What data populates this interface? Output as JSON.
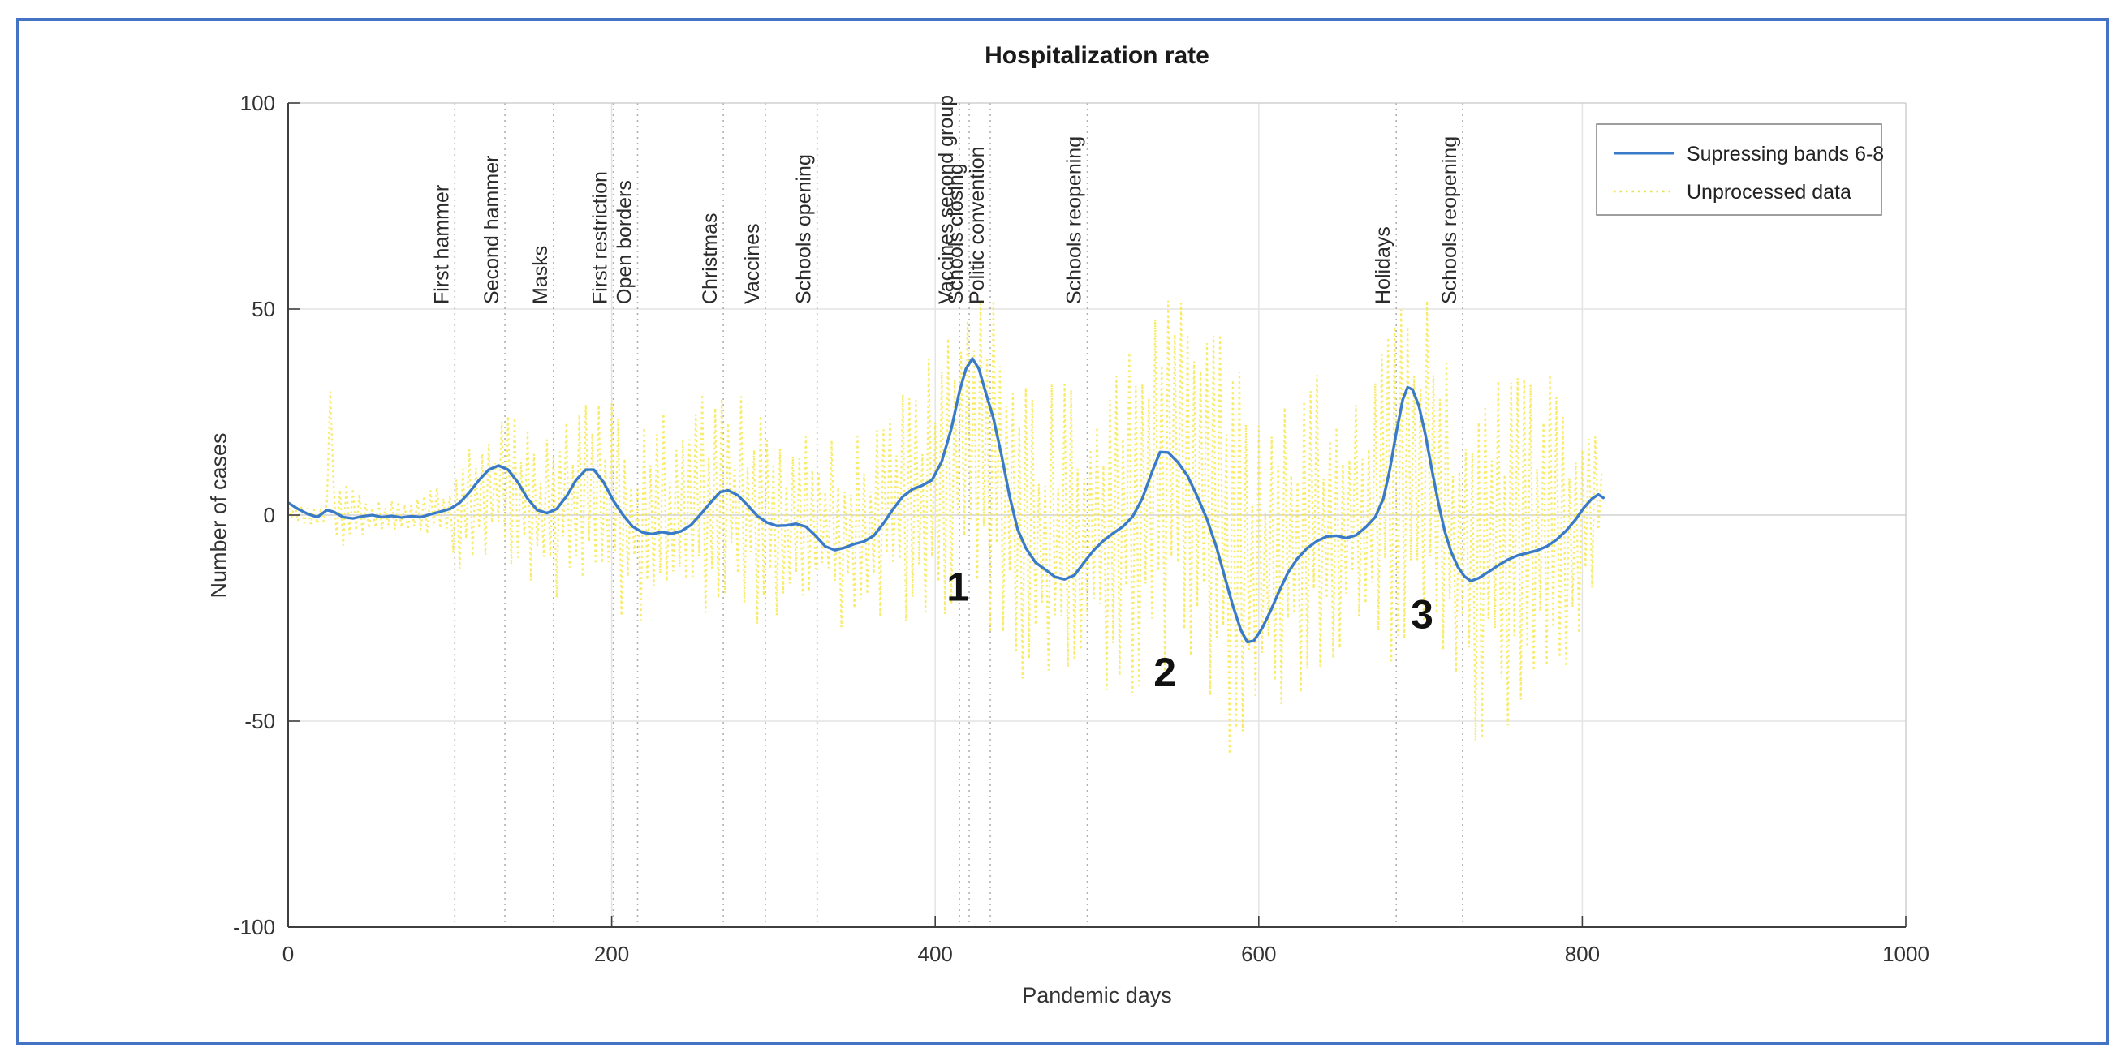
{
  "figure": {
    "border_color": "#4472C4",
    "background": "#ffffff"
  },
  "chart_data": {
    "type": "line",
    "title": "Hospitalization rate",
    "xlabel": "Pandemic days",
    "ylabel": "Number of cases",
    "xlim": [
      0,
      1000
    ],
    "ylim": [
      -100,
      100
    ],
    "xticks": [
      0,
      200,
      400,
      600,
      800,
      1000
    ],
    "yticks": [
      -100,
      -50,
      0,
      50,
      100
    ],
    "grid": true,
    "colors": {
      "smoothed": "#3a7bc8",
      "raw": "#f6e84f",
      "raw_legend": "#ece04a",
      "grid": "#e4e4e4",
      "zero_grid": "#d2d2d2",
      "event_line": "#b0b0b0",
      "axis": "#3f3f3f",
      "box": "#c8c8c8",
      "tick_text": "#333333",
      "event_text": "#2b2b2b",
      "annotation": "#111111",
      "legend_border": "#7f7f7f"
    },
    "legend": {
      "position": "top-right",
      "entries": [
        {
          "label": "Supressing bands 6-8",
          "style": "solid",
          "color": "#3a7bc8"
        },
        {
          "label": "Unprocessed data",
          "style": "dotted",
          "color": "#ece04a"
        }
      ]
    },
    "events": [
      {
        "label": "First hammer",
        "day": 103
      },
      {
        "label": "Second hammer",
        "day": 134
      },
      {
        "label": "Masks",
        "day": 164
      },
      {
        "label": "First restriction",
        "day": 201
      },
      {
        "label": "Open borders",
        "day": 216
      },
      {
        "label": "Christmas",
        "day": 269
      },
      {
        "label": "Vaccines",
        "day": 295
      },
      {
        "label": "Schools opening",
        "day": 327
      },
      {
        "label": "Vaccines second group",
        "day": 415
      },
      {
        "label": "Schools closing",
        "day": 421
      },
      {
        "label": "Politic convention",
        "day": 434
      },
      {
        "label": "Schools reopening",
        "day": 494
      },
      {
        "label": "Holidays",
        "day": 685
      },
      {
        "label": "Schools reopening",
        "day": 726
      }
    ],
    "annotations": [
      {
        "text": "1",
        "day": 414,
        "value": -20.8
      },
      {
        "text": "2",
        "day": 542,
        "value": -41.5
      },
      {
        "text": "3",
        "day": 701,
        "value": -27.5
      }
    ],
    "series": [
      {
        "name": "Supressing bands 6-8",
        "kind": "smoothed",
        "points": [
          [
            0,
            3
          ],
          [
            6,
            1.5
          ],
          [
            12,
            0.3
          ],
          [
            18,
            -0.5
          ],
          [
            24,
            1.2
          ],
          [
            28,
            0.8
          ],
          [
            34,
            -0.5
          ],
          [
            40,
            -0.8
          ],
          [
            46,
            -0.3
          ],
          [
            52,
            0
          ],
          [
            58,
            -0.5
          ],
          [
            64,
            -0.2
          ],
          [
            70,
            -0.6
          ],
          [
            76,
            -0.3
          ],
          [
            82,
            -0.5
          ],
          [
            88,
            0.2
          ],
          [
            94,
            0.8
          ],
          [
            100,
            1.5
          ],
          [
            106,
            3
          ],
          [
            112,
            5.5
          ],
          [
            118,
            8.5
          ],
          [
            124,
            11
          ],
          [
            130,
            12
          ],
          [
            136,
            11
          ],
          [
            142,
            8
          ],
          [
            148,
            4
          ],
          [
            154,
            1.2
          ],
          [
            160,
            0.5
          ],
          [
            166,
            1.5
          ],
          [
            172,
            4.5
          ],
          [
            178,
            8.5
          ],
          [
            184,
            11
          ],
          [
            189,
            11
          ],
          [
            195,
            8
          ],
          [
            201,
            3.5
          ],
          [
            207,
            0
          ],
          [
            213,
            -2.8
          ],
          [
            219,
            -4.2
          ],
          [
            225,
            -4.6
          ],
          [
            231,
            -4.1
          ],
          [
            237,
            -4.5
          ],
          [
            243,
            -3.9
          ],
          [
            249,
            -2.4
          ],
          [
            255,
            0.2
          ],
          [
            261,
            3
          ],
          [
            267,
            5.6
          ],
          [
            272,
            6
          ],
          [
            278,
            4.8
          ],
          [
            284,
            2.4
          ],
          [
            290,
            -0.2
          ],
          [
            296,
            -1.8
          ],
          [
            302,
            -2.6
          ],
          [
            308,
            -2.5
          ],
          [
            314,
            -2.1
          ],
          [
            320,
            -2.8
          ],
          [
            326,
            -5
          ],
          [
            332,
            -7.6
          ],
          [
            338,
            -8.5
          ],
          [
            344,
            -7.9
          ],
          [
            350,
            -7
          ],
          [
            356,
            -6.4
          ],
          [
            362,
            -5
          ],
          [
            368,
            -2
          ],
          [
            374,
            1.5
          ],
          [
            380,
            4.5
          ],
          [
            386,
            6.3
          ],
          [
            392,
            7.2
          ],
          [
            398,
            8.5
          ],
          [
            404,
            13
          ],
          [
            410,
            21
          ],
          [
            415,
            30
          ],
          [
            419,
            35.5
          ],
          [
            423,
            38
          ],
          [
            427,
            35.5
          ],
          [
            431,
            30
          ],
          [
            436,
            23.5
          ],
          [
            441,
            14.5
          ],
          [
            446,
            4.5
          ],
          [
            451,
            -3.5
          ],
          [
            456,
            -8
          ],
          [
            462,
            -11.5
          ],
          [
            468,
            -13.2
          ],
          [
            474,
            -15
          ],
          [
            480,
            -15.6
          ],
          [
            486,
            -14.6
          ],
          [
            492,
            -11.5
          ],
          [
            498,
            -8.5
          ],
          [
            504,
            -6.2
          ],
          [
            510,
            -4.4
          ],
          [
            516,
            -2.8
          ],
          [
            522,
            -0.4
          ],
          [
            528,
            4
          ],
          [
            534,
            10.5
          ],
          [
            539,
            15.3
          ],
          [
            544,
            15.2
          ],
          [
            550,
            12.8
          ],
          [
            556,
            9.5
          ],
          [
            562,
            4.5
          ],
          [
            568,
            -1
          ],
          [
            574,
            -8
          ],
          [
            579,
            -15
          ],
          [
            584,
            -22
          ],
          [
            589,
            -28
          ],
          [
            593,
            -30.8
          ],
          [
            597,
            -30.5
          ],
          [
            602,
            -27.5
          ],
          [
            607,
            -23.5
          ],
          [
            612,
            -19
          ],
          [
            618,
            -14
          ],
          [
            624,
            -10.5
          ],
          [
            630,
            -8
          ],
          [
            636,
            -6.3
          ],
          [
            642,
            -5.2
          ],
          [
            648,
            -5
          ],
          [
            654,
            -5.6
          ],
          [
            660,
            -4.9
          ],
          [
            666,
            -3
          ],
          [
            672,
            -0.5
          ],
          [
            677,
            4
          ],
          [
            681,
            11
          ],
          [
            685,
            20
          ],
          [
            689,
            28
          ],
          [
            692,
            31
          ],
          [
            695,
            30.5
          ],
          [
            699,
            26.5
          ],
          [
            703,
            19.5
          ],
          [
            707,
            11
          ],
          [
            711,
            3
          ],
          [
            715,
            -4
          ],
          [
            719,
            -9
          ],
          [
            723,
            -12.5
          ],
          [
            727,
            -14.8
          ],
          [
            731,
            -16
          ],
          [
            736,
            -15.3
          ],
          [
            742,
            -13.8
          ],
          [
            748,
            -12.2
          ],
          [
            754,
            -10.8
          ],
          [
            760,
            -9.8
          ],
          [
            766,
            -9.2
          ],
          [
            772,
            -8.6
          ],
          [
            778,
            -7.6
          ],
          [
            784,
            -6
          ],
          [
            790,
            -3.8
          ],
          [
            796,
            -1
          ],
          [
            801,
            1.8
          ],
          [
            806,
            4
          ],
          [
            810,
            5
          ],
          [
            813,
            4.2
          ]
        ]
      },
      {
        "name": "Unprocessed data",
        "kind": "noisy",
        "style": "dotted",
        "range_days": [
          0,
          813
        ],
        "step_days": 2,
        "center_scale": 0.55,
        "amplitude_envelope": [
          [
            0,
            2
          ],
          [
            20,
            3
          ],
          [
            26,
            8
          ],
          [
            36,
            9
          ],
          [
            46,
            7
          ],
          [
            56,
            4
          ],
          [
            70,
            3.5
          ],
          [
            85,
            5
          ],
          [
            95,
            10
          ],
          [
            110,
            17
          ],
          [
            130,
            19
          ],
          [
            150,
            20
          ],
          [
            170,
            22
          ],
          [
            190,
            24
          ],
          [
            210,
            26
          ],
          [
            230,
            27
          ],
          [
            250,
            29
          ],
          [
            270,
            29
          ],
          [
            290,
            28
          ],
          [
            310,
            26
          ],
          [
            330,
            24
          ],
          [
            350,
            26
          ],
          [
            370,
            29
          ],
          [
            390,
            34
          ],
          [
            410,
            44
          ],
          [
            430,
            46
          ],
          [
            450,
            44
          ],
          [
            470,
            40
          ],
          [
            490,
            44
          ],
          [
            510,
            42
          ],
          [
            530,
            46
          ],
          [
            550,
            50
          ],
          [
            570,
            53
          ],
          [
            590,
            52
          ],
          [
            610,
            46
          ],
          [
            630,
            40
          ],
          [
            650,
            33
          ],
          [
            670,
            40
          ],
          [
            690,
            46
          ],
          [
            710,
            44
          ],
          [
            730,
            46
          ],
          [
            750,
            50
          ],
          [
            770,
            46
          ],
          [
            790,
            36
          ],
          [
            805,
            26
          ],
          [
            813,
            15
          ]
        ],
        "outliers": [
          [
            26,
            30
          ]
        ]
      }
    ]
  }
}
